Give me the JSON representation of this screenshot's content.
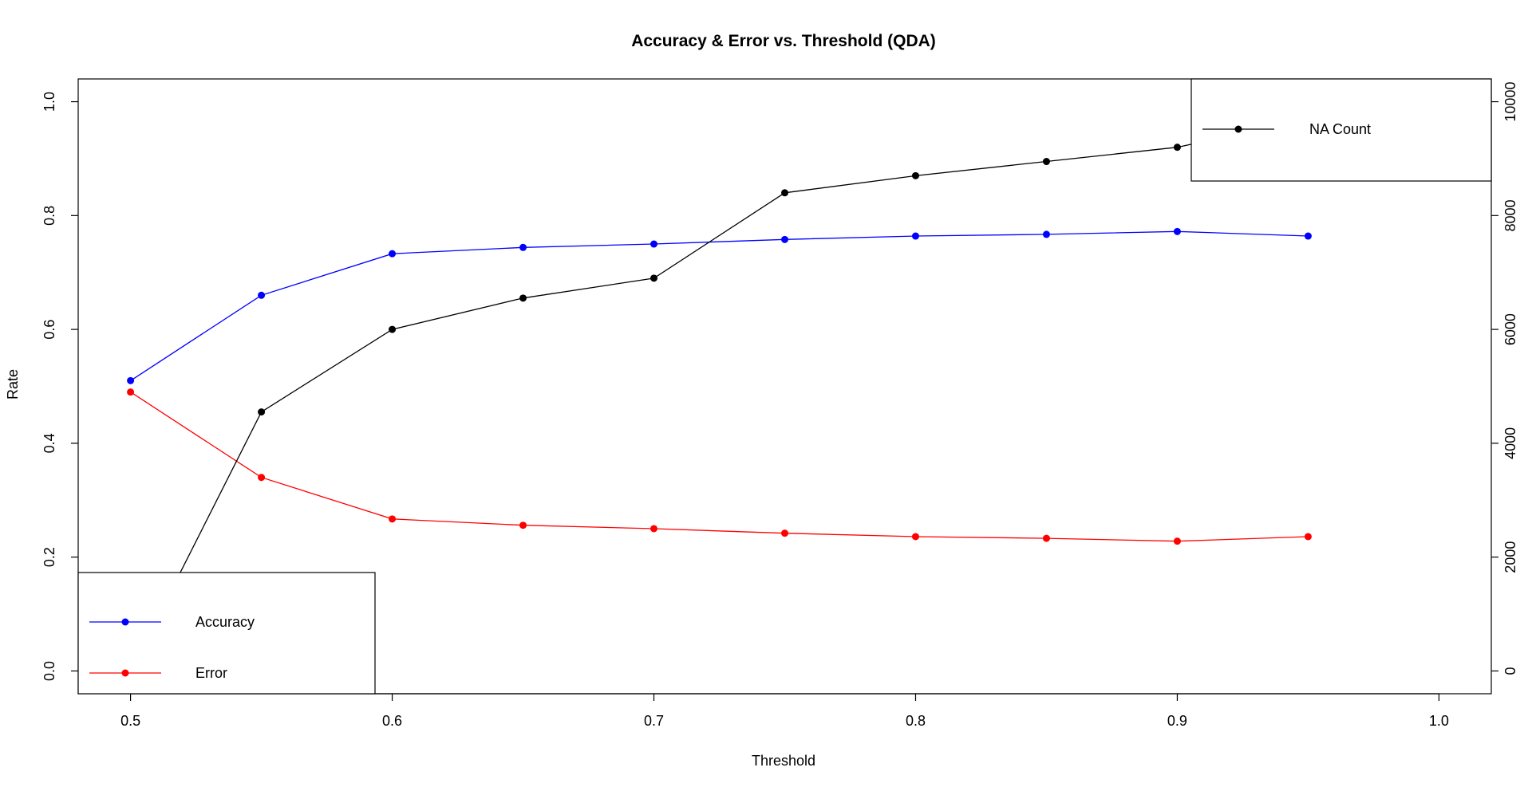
{
  "chart_data": {
    "type": "line",
    "title": "Accuracy & Error vs. Threshold (QDA)",
    "xlabel": "Threshold",
    "ylabel": "Rate",
    "y2label": "",
    "xlim": [
      0.48,
      1.02
    ],
    "ylim": [
      -0.04,
      1.04
    ],
    "y2lim": [
      -400,
      10400
    ],
    "x_ticks": [
      0.5,
      0.6,
      0.7,
      0.8,
      0.9,
      1.0
    ],
    "x_tick_labels": [
      "0.5",
      "0.6",
      "0.7",
      "0.8",
      "0.9",
      "1.0"
    ],
    "y_ticks": [
      0.0,
      0.2,
      0.4,
      0.6,
      0.8,
      1.0
    ],
    "y_tick_labels": [
      "0.0",
      "0.2",
      "0.4",
      "0.6",
      "0.8",
      "1.0"
    ],
    "y2_ticks": [
      0,
      2000,
      4000,
      6000,
      8000,
      10000
    ],
    "y2_tick_labels": [
      "0",
      "2000",
      "4000",
      "6000",
      "8000",
      "10000"
    ],
    "grid": false,
    "x": [
      0.5,
      0.55,
      0.6,
      0.65,
      0.7,
      0.75,
      0.8,
      0.85,
      0.9,
      0.95
    ],
    "series": [
      {
        "name": "Accuracy",
        "axis": "left",
        "color": "#0000FF",
        "values": [
          0.51,
          0.66,
          0.733,
          0.744,
          0.75,
          0.758,
          0.764,
          0.767,
          0.772,
          0.764
        ]
      },
      {
        "name": "Error",
        "axis": "left",
        "color": "#FF0000",
        "values": [
          0.49,
          0.34,
          0.267,
          0.256,
          0.25,
          0.242,
          0.236,
          0.233,
          0.228,
          0.236
        ]
      },
      {
        "name": "NA Count",
        "axis": "right",
        "color": "#000000",
        "values": [
          0,
          4550,
          6000,
          6550,
          6900,
          8400,
          8700,
          8950,
          9200,
          9700
        ]
      }
    ],
    "legends": [
      {
        "placement": "bottom-left",
        "entries": [
          "Accuracy",
          "Error"
        ]
      },
      {
        "placement": "top-right",
        "entries": [
          "NA Count"
        ]
      }
    ]
  }
}
